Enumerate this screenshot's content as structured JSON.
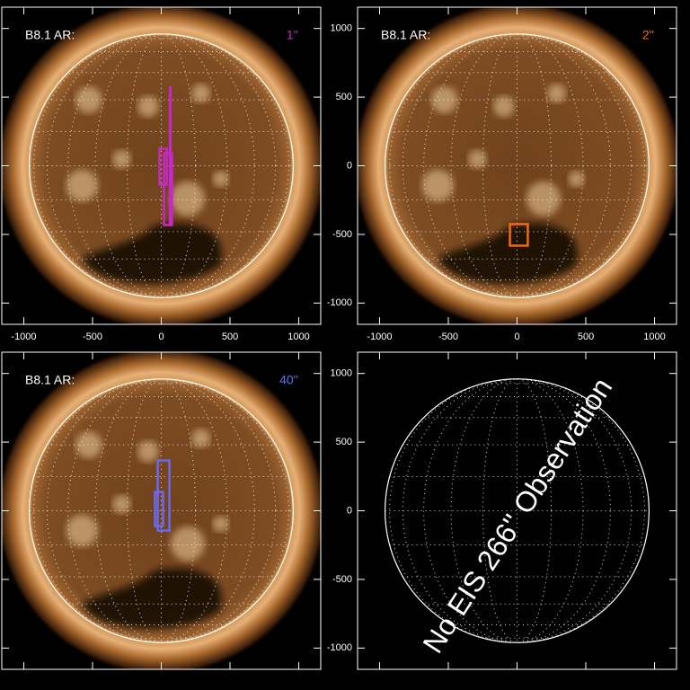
{
  "chart_data": [
    {
      "type": "image",
      "label": "B8.1 AR:",
      "slit": "1''",
      "slit_color": "#c828c8",
      "solar_radius": 960,
      "xlim": [
        -1160,
        1160
      ],
      "ylim": [
        -1155,
        1155
      ],
      "xticks": [
        -1000,
        -500,
        0,
        500,
        1000
      ],
      "yticks": [
        -1000,
        -500,
        0,
        500,
        1000
      ],
      "xtick_labels": true,
      "ytick_labels": false,
      "fov_boxes": [
        {
          "x": 20,
          "y": -431,
          "w": 58,
          "h": 522
        },
        {
          "x": -13,
          "y": -137,
          "w": 53,
          "h": 261
        },
        {
          "x": 63,
          "y": -431,
          "w": 4,
          "h": 1000
        }
      ]
    },
    {
      "type": "image",
      "label": "B8.1 AR:",
      "slit": "2''",
      "slit_color": "#f06a18",
      "solar_radius": 960,
      "xlim": [
        -1160,
        1160
      ],
      "ylim": [
        -1155,
        1155
      ],
      "xticks": [
        -1000,
        -500,
        0,
        500,
        1000
      ],
      "yticks": [
        -1000,
        -500,
        0,
        500,
        1000
      ],
      "xtick_labels": true,
      "ytick_labels": true,
      "fov_boxes": [
        {
          "x": -52,
          "y": -582,
          "w": 130,
          "h": 157
        }
      ]
    },
    {
      "type": "image",
      "label": "B8.1 AR:",
      "slit": "40''",
      "slit_color": "#6a6af0",
      "solar_radius": 960,
      "xlim": [
        -1160,
        1160
      ],
      "ylim": [
        -1155,
        1155
      ],
      "xticks": [
        -1000,
        -500,
        0,
        500,
        1000
      ],
      "yticks": [
        -1000,
        -500,
        0,
        500,
        1000
      ],
      "xtick_labels": false,
      "ytick_labels": false,
      "fov_boxes": [
        {
          "x": -26,
          "y": -144,
          "w": 85,
          "h": 510
        },
        {
          "x": -46,
          "y": -111,
          "w": 59,
          "h": 248
        }
      ]
    },
    {
      "type": "disk",
      "annotation": "No EIS 266'' Observation",
      "solar_radius": 960,
      "xlim": [
        -1160,
        1160
      ],
      "ylim": [
        -1155,
        1155
      ],
      "xticks": [
        -1000,
        -500,
        0,
        500,
        1000
      ],
      "yticks": [
        -1000,
        -500,
        0,
        500,
        1000
      ],
      "xtick_labels": false,
      "ytick_labels": true
    }
  ]
}
